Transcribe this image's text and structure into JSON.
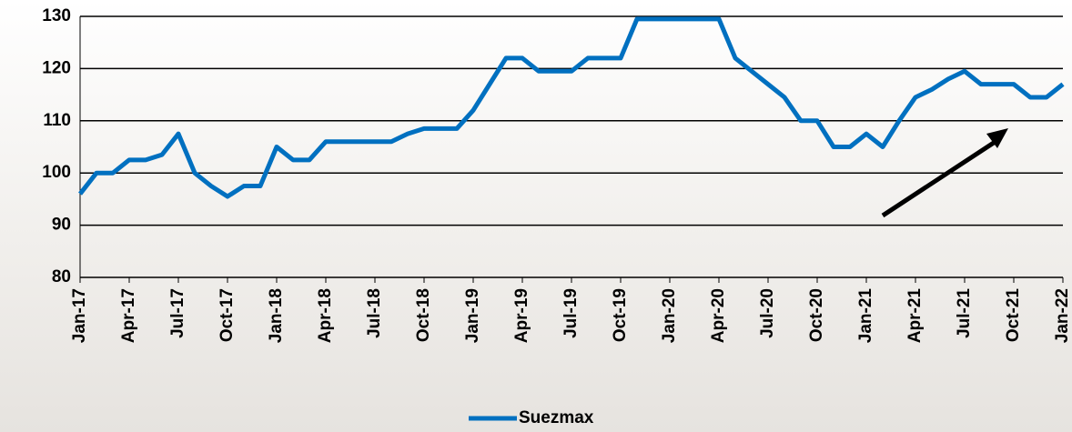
{
  "chart_data": {
    "type": "line",
    "categories": [
      "Jan-17",
      null,
      null,
      "Apr-17",
      null,
      null,
      "Jul-17",
      null,
      null,
      "Oct-17",
      null,
      null,
      "Jan-18",
      null,
      null,
      "Apr-18",
      null,
      null,
      "Jul-18",
      null,
      null,
      "Oct-18",
      null,
      null,
      "Jan-19",
      null,
      null,
      "Apr-19",
      null,
      null,
      "Jul-19",
      null,
      null,
      "Oct-19",
      null,
      null,
      "Jan-20",
      null,
      null,
      "Apr-20",
      null,
      null,
      "Jul-20",
      null,
      null,
      "Oct-20",
      null,
      null,
      "Jan-21",
      null,
      null,
      "Apr-21",
      null,
      null,
      "Jul-21",
      null,
      null,
      "Oct-21",
      null,
      null,
      "Jan-22"
    ],
    "series": [
      {
        "name": "Suezmax",
        "color": "#0070c0",
        "values": [
          96,
          100,
          100,
          102.5,
          102.5,
          103.5,
          107.5,
          100,
          97.5,
          95.5,
          97.5,
          97.5,
          105,
          102.5,
          102.5,
          106,
          106,
          106,
          106,
          106,
          107.5,
          108.5,
          108.5,
          108.5,
          112,
          117,
          122,
          122,
          119.5,
          119.5,
          119.5,
          122,
          122,
          122,
          129.5,
          129.5,
          129.5,
          129.5,
          129.5,
          129.5,
          122,
          119.5,
          117,
          114.5,
          110,
          110,
          105,
          105,
          107.5,
          105,
          110,
          114.5,
          116,
          118,
          119.5,
          117,
          117,
          117,
          114.5,
          114.5,
          117
        ]
      }
    ],
    "ylim": [
      80,
      130
    ],
    "yticks": [
      80,
      90,
      100,
      110,
      120,
      130
    ],
    "grid": true,
    "legend": "bottom"
  }
}
